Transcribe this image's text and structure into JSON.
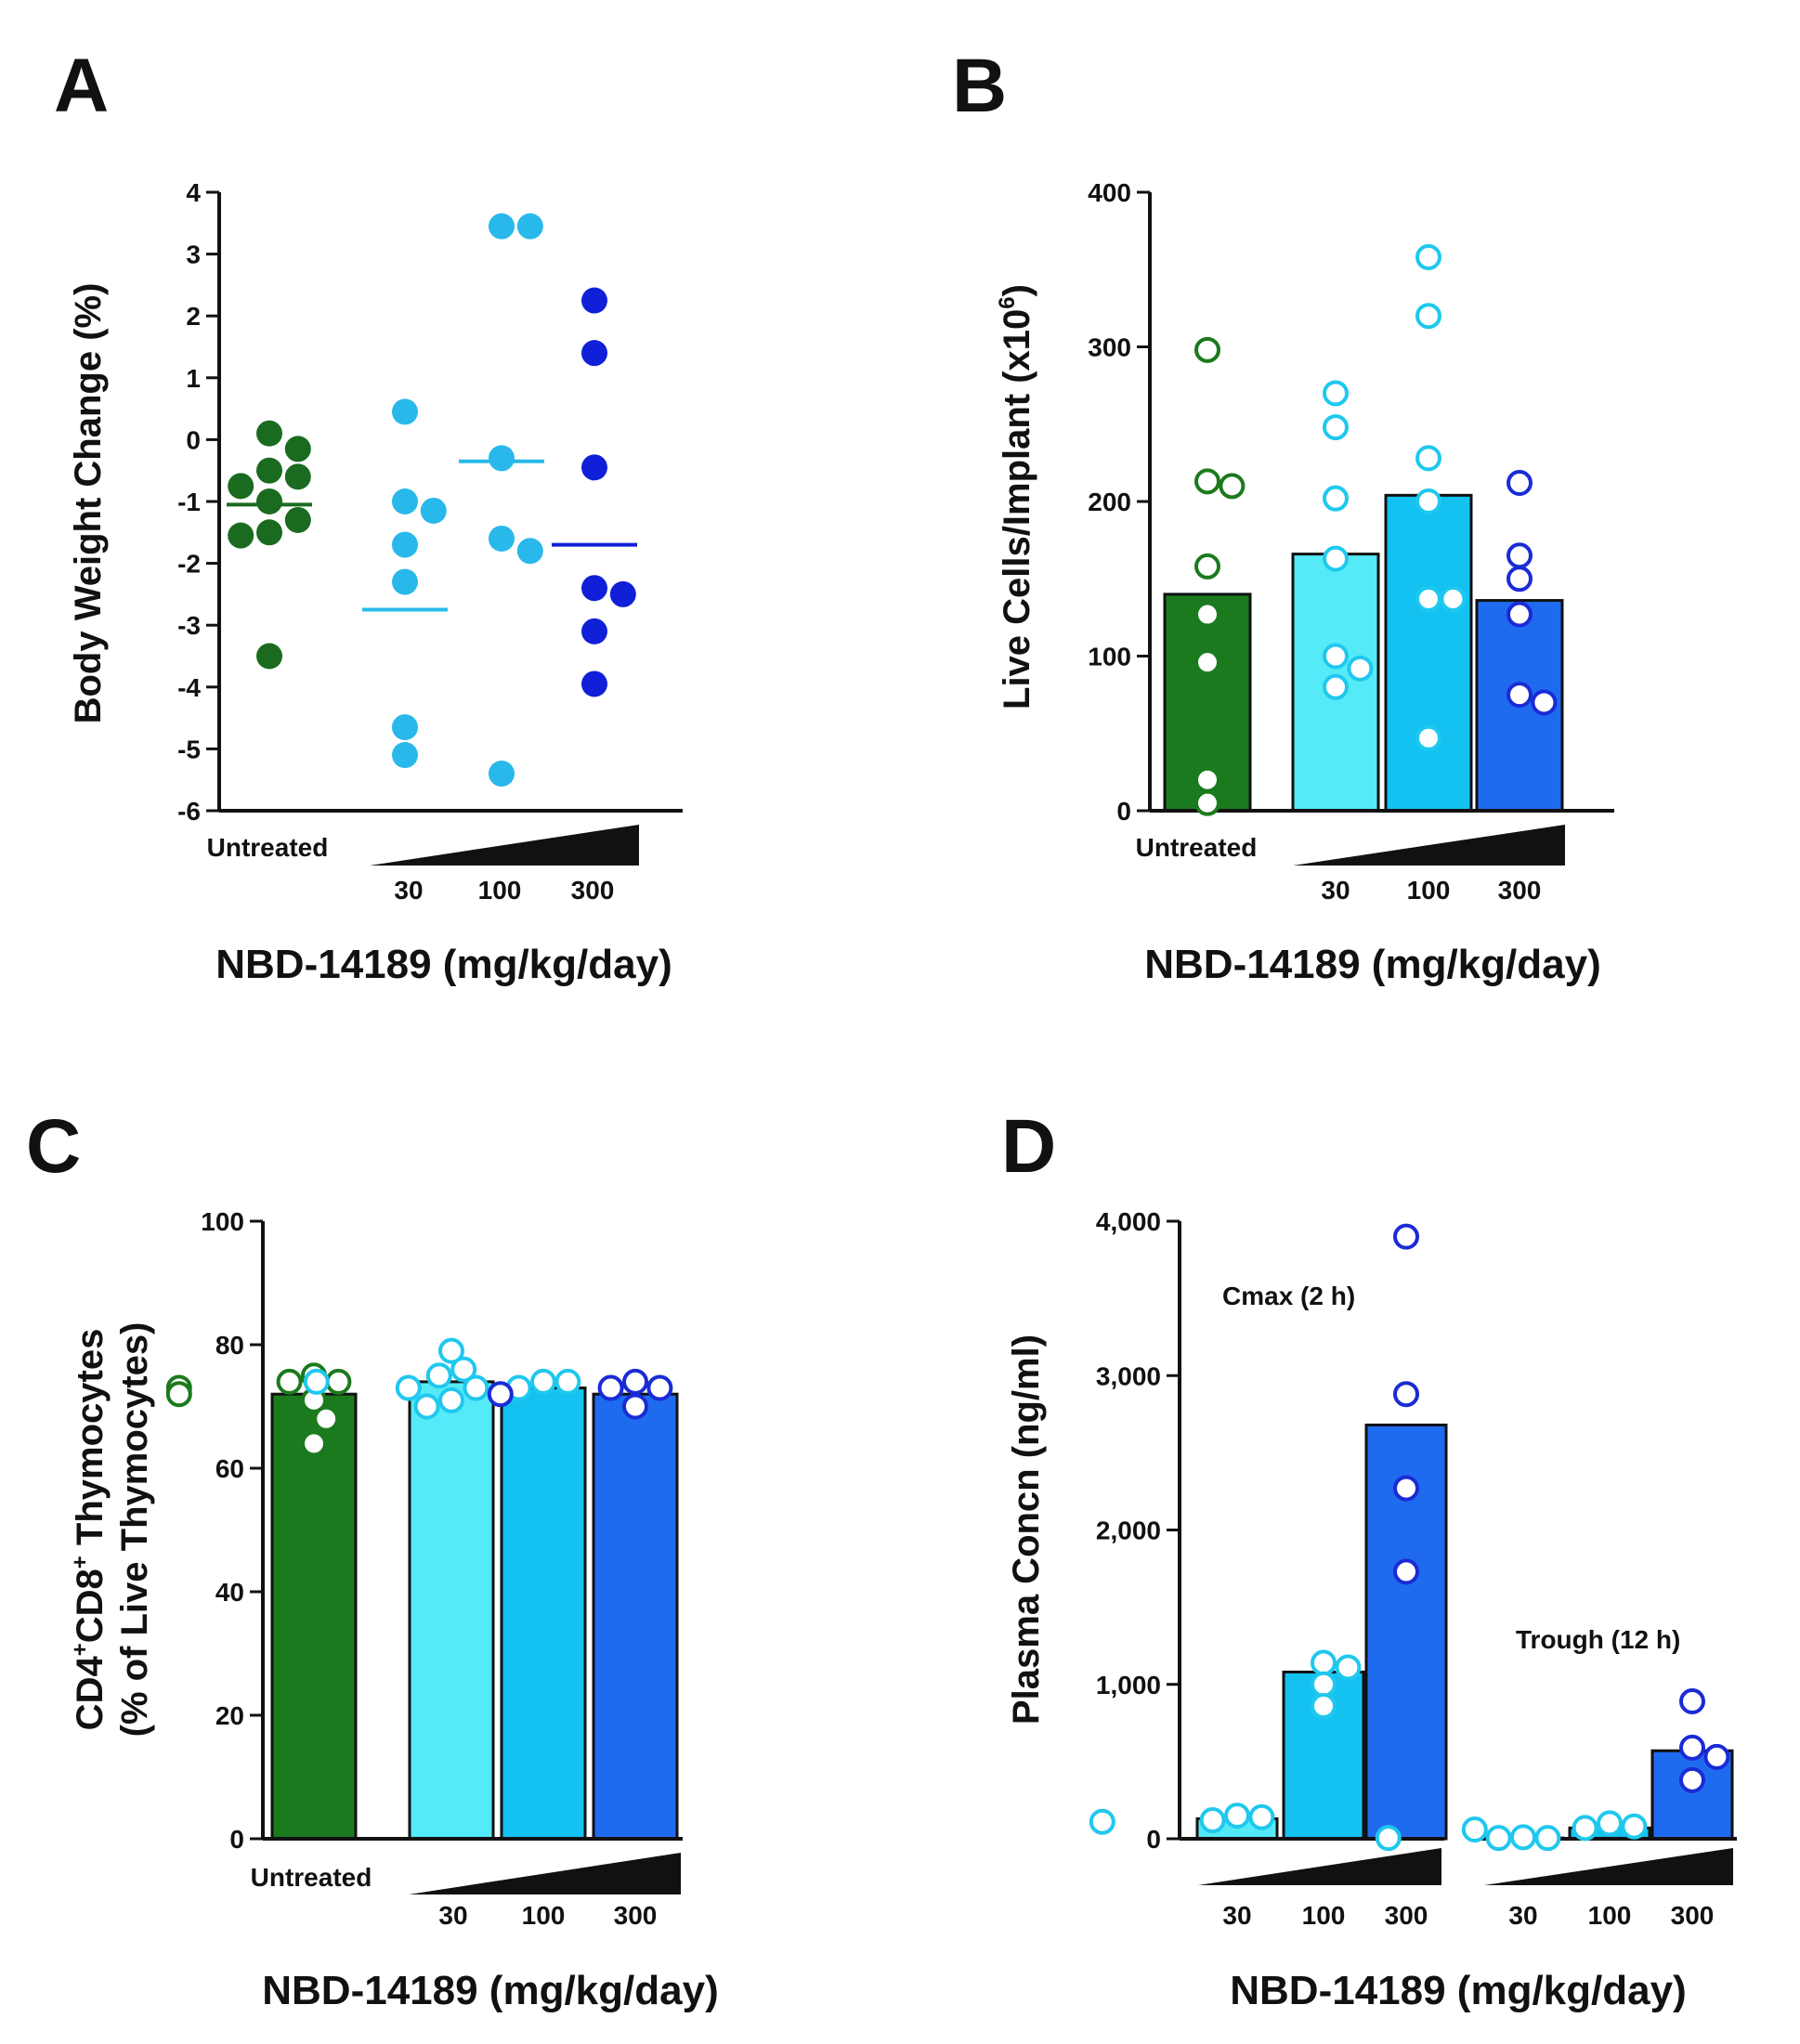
{
  "chart_data": [
    {
      "panel": "A",
      "type": "scatter",
      "ylabel": "Body Weight Change (%)",
      "xlabel": "NBD-14189 (mg/kg/day)",
      "ylim": [
        -6,
        4
      ],
      "yticks": [
        "4",
        "3",
        "2",
        "1",
        "0",
        "-1",
        "-2",
        "-3",
        "-4",
        "-5",
        "-6"
      ],
      "untreated_label": "Untreated",
      "dose_labels": [
        "30",
        "100",
        "300"
      ],
      "groups": [
        {
          "name": "Untreated",
          "color": "#1a6b1f",
          "filled": true,
          "mean": -1.05,
          "points": [
            0.1,
            -0.15,
            -0.5,
            -0.6,
            -0.75,
            -1.0,
            -1.3,
            -1.5,
            -1.55,
            -3.5
          ]
        },
        {
          "name": "30",
          "color": "#29b8ea",
          "filled": true,
          "mean": -2.75,
          "points": [
            0.45,
            -1.0,
            -1.15,
            -1.7,
            -2.3,
            -4.65,
            -5.1
          ]
        },
        {
          "name": "100",
          "color": "#29b8ea",
          "filled": true,
          "mean": -0.35,
          "points": [
            3.45,
            3.45,
            -0.3,
            -1.6,
            -1.8,
            -5.4
          ]
        },
        {
          "name": "300",
          "color": "#1020d8",
          "filled": true,
          "mean": -1.7,
          "points": [
            2.25,
            1.4,
            -0.45,
            -2.4,
            -2.5,
            -3.1,
            -3.95
          ]
        }
      ]
    },
    {
      "panel": "B",
      "type": "bar",
      "ylabel_main": "Live Cells/Implant (x10",
      "ylabel_sup": "6",
      "ylabel_end": ")",
      "xlabel": "NBD-14189 (mg/kg/day)",
      "ylim": [
        0,
        400
      ],
      "yticks": [
        "400",
        "300",
        "200",
        "100",
        "0"
      ],
      "untreated_label": "Untreated",
      "dose_labels": [
        "30",
        "100",
        "300"
      ],
      "groups": [
        {
          "name": "Untreated",
          "bar_color": "#1b7a1e",
          "point_color": "#1b7a1e",
          "value": 140,
          "points": [
            298,
            213,
            210,
            158,
            127,
            96,
            20,
            5
          ]
        },
        {
          "name": "30",
          "bar_color": "#55eaf8",
          "point_color": "#1fc8ee",
          "value": 166,
          "points": [
            270,
            248,
            202,
            163,
            100,
            92,
            80
          ]
        },
        {
          "name": "100",
          "bar_color": "#14c2f2",
          "point_color": "#1fc8ee",
          "value": 204,
          "points": [
            358,
            320,
            228,
            200,
            137,
            137,
            47
          ]
        },
        {
          "name": "300",
          "bar_color": "#1f6bf0",
          "point_color": "#1a2bd6",
          "value": 136,
          "points": [
            212,
            165,
            150,
            127,
            75,
            70
          ]
        }
      ]
    },
    {
      "panel": "C",
      "type": "bar",
      "ylabel_line1_a": "CD4",
      "ylabel_line1_sup1": "+",
      "ylabel_line1_b": "CD8",
      "ylabel_line1_sup2": "+",
      "ylabel_line1_c": " Thymocytes",
      "ylabel_line2": "(% of Live Thymocytes)",
      "xlabel": "NBD-14189 (mg/kg/day)",
      "ylim": [
        0,
        100
      ],
      "yticks": [
        "100",
        "80",
        "60",
        "40",
        "20",
        "0"
      ],
      "untreated_label": "Untreated",
      "dose_labels": [
        "30",
        "100",
        "300"
      ],
      "groups": [
        {
          "name": "Untreated",
          "bar_color": "#1b7a1e",
          "point_color": "#1b7a1e",
          "value": 72,
          "points": [
            75,
            74,
            74,
            73,
            72,
            71,
            68,
            64
          ]
        },
        {
          "name": "30",
          "bar_color": "#55eaf8",
          "point_color": "#1fc8ee",
          "value": 74,
          "points": [
            79,
            76,
            75,
            74,
            73,
            71,
            70
          ]
        },
        {
          "name": "100",
          "bar_color": "#14c2f2",
          "point_color": "#1fc8ee",
          "value": 73,
          "points": [
            74,
            74,
            73,
            73
          ]
        },
        {
          "name": "300",
          "bar_color": "#1f6bf0",
          "point_color": "#1a2bd6",
          "value": 72,
          "points": [
            74,
            73,
            73,
            72,
            70
          ]
        }
      ]
    },
    {
      "panel": "D",
      "type": "bar",
      "ylabel": "Plasma Concn (ng/ml)",
      "xlabel": "NBD-14189 (mg/kg/day)",
      "ylim": [
        0,
        4000
      ],
      "yticks": [
        "4,000",
        "3,000",
        "2,000",
        "1,000",
        "0"
      ],
      "cmax_label": "Cmax (2 h)",
      "trough_label": "Trough (12 h)",
      "dose_labels": [
        "30",
        "100",
        "300",
        "30",
        "100",
        "300"
      ],
      "groups": [
        {
          "name": "Cmax 30",
          "bar_color": "#55eaf8",
          "point_color": "#1fc8ee",
          "value": 130,
          "points": [
            150,
            140,
            120,
            110
          ]
        },
        {
          "name": "Cmax 100",
          "bar_color": "#14c2f2",
          "point_color": "#1fc8ee",
          "value": 1080,
          "points": [
            1140,
            1110,
            1000,
            860
          ]
        },
        {
          "name": "Cmax 300",
          "bar_color": "#1f6bf0",
          "point_color": "#1a2bd6",
          "value": 2680,
          "points": [
            3900,
            2880,
            2270,
            1730
          ]
        },
        {
          "name": "Trough 30",
          "bar_color": "#55eaf8",
          "point_color": "#1fc8ee",
          "value": 5,
          "points": [
            10,
            5,
            5,
            5
          ]
        },
        {
          "name": "Trough 100",
          "bar_color": "#14c2f2",
          "point_color": "#1fc8ee",
          "value": 70,
          "points": [
            100,
            80,
            70,
            60
          ]
        },
        {
          "name": "Trough 300",
          "bar_color": "#1f6bf0",
          "point_color": "#1a2bd6",
          "value": 570,
          "points": [
            890,
            590,
            530,
            380
          ]
        }
      ]
    }
  ]
}
